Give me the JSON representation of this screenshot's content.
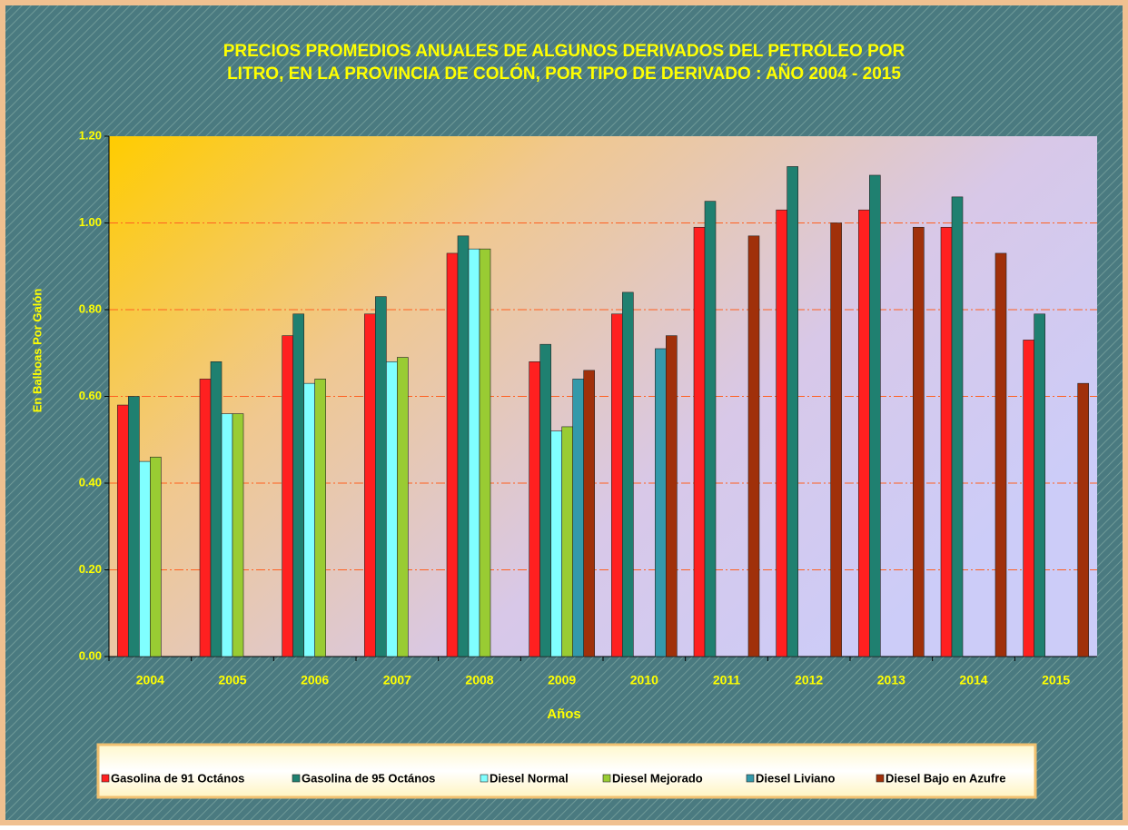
{
  "chart_data": {
    "type": "bar",
    "title": [
      "PRECIOS PROMEDIOS ANUALES DE ALGUNOS DERIVADOS DEL PETRÓLEO POR",
      "LITRO, EN LA PROVINCIA DE COLÓN, POR TIPO DE DERIVADO : AÑO 2004 - 2015"
    ],
    "x_label": "Años",
    "y_label": "En Balboas Por Galón",
    "categories": [
      "2004",
      "2005",
      "2006",
      "2007",
      "2008",
      "2009",
      "2010",
      "2011",
      "2012",
      "2013",
      "2014",
      "2015"
    ],
    "series": [
      {
        "name": "Gasolina de 91 Octános",
        "color": "#ff2020",
        "values": [
          0.58,
          0.64,
          0.74,
          0.79,
          0.93,
          0.68,
          0.79,
          0.99,
          1.03,
          1.03,
          0.99,
          0.73
        ]
      },
      {
        "name": "Gasolina de 95 Octános",
        "color": "#1f8070",
        "values": [
          0.6,
          0.68,
          0.79,
          0.83,
          0.97,
          0.72,
          0.84,
          1.05,
          1.13,
          1.11,
          1.06,
          0.79
        ]
      },
      {
        "name": "Diesel Normal",
        "color": "#80ffff",
        "values": [
          0.45,
          0.56,
          0.63,
          0.68,
          0.94,
          0.52,
          null,
          null,
          null,
          null,
          null,
          null
        ]
      },
      {
        "name": "Diesel Mejorado",
        "color": "#99cc33",
        "values": [
          0.46,
          0.56,
          0.64,
          0.69,
          0.94,
          0.53,
          null,
          null,
          null,
          null,
          null,
          null
        ]
      },
      {
        "name": "Diesel Liviano",
        "color": "#3399aa",
        "values": [
          null,
          null,
          null,
          null,
          null,
          0.64,
          0.71,
          null,
          null,
          null,
          null,
          null
        ]
      },
      {
        "name": "Diesel Bajo en Azufre",
        "color": "#a0300a",
        "values": [
          null,
          null,
          null,
          null,
          null,
          0.66,
          0.74,
          0.97,
          1.0,
          0.99,
          0.93,
          0.63
        ]
      }
    ],
    "ylim": [
      0,
      1.2
    ],
    "yticks": [
      {
        "value": 0,
        "label": "0.00"
      },
      {
        "value": 0.2,
        "label": "0.20"
      },
      {
        "value": 0.4,
        "label": "0.40"
      },
      {
        "value": 0.6,
        "label": "0.60"
      },
      {
        "value": 0.8,
        "label": "0.80"
      },
      {
        "value": 1.0,
        "label": "1.00"
      },
      {
        "value": 1.2,
        "label": "1.20"
      }
    ],
    "grid": true,
    "legend": "bottom"
  }
}
